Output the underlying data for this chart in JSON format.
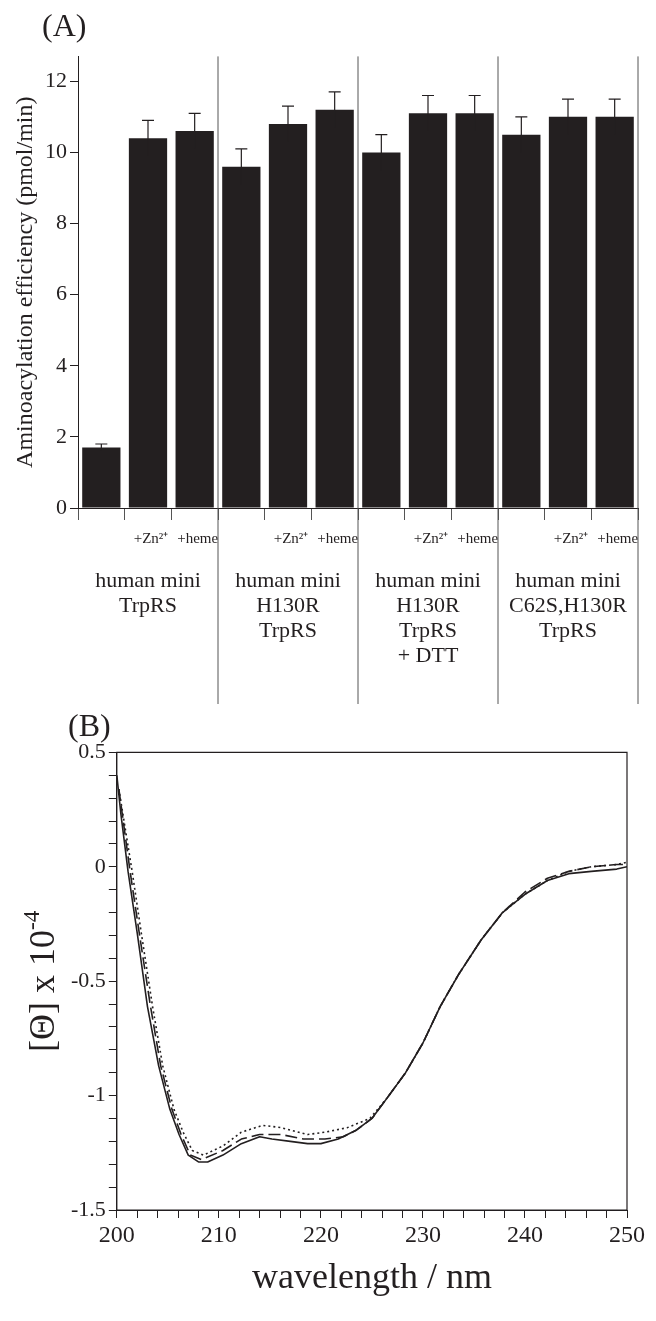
{
  "chart_data": [
    {
      "type": "bar",
      "title": "(A)",
      "ylabel": "Aminoacylation efficiency (pmol/min)",
      "categories": [
        null,
        "+Zn²⁺",
        "+heme",
        null,
        "+Zn²⁺",
        "+heme",
        null,
        "+Zn²⁺",
        "+heme",
        null,
        "+Zn²⁺",
        "+heme"
      ],
      "values": [
        1.7,
        10.4,
        10.6,
        9.6,
        10.8,
        11.2,
        10.0,
        11.1,
        11.1,
        10.5,
        11.0,
        11.0
      ],
      "errors": [
        0.1,
        0.5,
        0.5,
        0.5,
        0.5,
        0.5,
        0.5,
        0.5,
        0.5,
        0.5,
        0.5,
        0.5
      ],
      "color": "#231f20",
      "ylim": [
        0,
        12.7
      ],
      "yticks": [
        0,
        2,
        4,
        6,
        8,
        10,
        12
      ],
      "annotations": [
        "human mini\nTrpRS",
        "human mini\nH130R\nTrpRS",
        "human mini\nH130R\nTrpRS\n+ DTT",
        "human mini\nC62S,H130R\nTrpRS"
      ]
    },
    {
      "type": "line",
      "title": "(B)",
      "xlabel": "wavelength / nm",
      "ylabel": "[Θ] x 10$^{-4}$",
      "marker": "none",
      "xlim": [
        200,
        250
      ],
      "xticks": [
        200,
        {
          "value": 202,
          "label": null
        },
        {
          "value": 204,
          "label": null
        },
        {
          "value": 206,
          "label": null
        },
        {
          "value": 208,
          "label": null
        },
        210,
        {
          "value": 212,
          "label": null
        },
        {
          "value": 214,
          "label": null
        },
        {
          "value": 216,
          "label": null
        },
        {
          "value": 218,
          "label": null
        },
        220,
        {
          "value": 222,
          "label": null
        },
        {
          "value": 224,
          "label": null
        },
        {
          "value": 226,
          "label": null
        },
        {
          "value": 228,
          "label": null
        },
        230,
        {
          "value": 232,
          "label": null
        },
        {
          "value": 234,
          "label": null
        },
        {
          "value": 236,
          "label": null
        },
        {
          "value": 238,
          "label": null
        },
        240,
        {
          "value": 242,
          "label": null
        },
        {
          "value": 244,
          "label": null
        },
        {
          "value": 246,
          "label": null
        },
        {
          "value": 248,
          "label": null
        },
        250
      ],
      "ylim": [
        -1.5,
        0.5
      ],
      "yticks": [
        -1.5,
        {
          "value": -1.4,
          "label": null
        },
        {
          "value": -1.3,
          "label": null
        },
        {
          "value": -1.2,
          "label": null
        },
        {
          "value": -1.1,
          "label": null
        },
        -1,
        {
          "value": -0.9,
          "label": null
        },
        {
          "value": -0.8,
          "label": null
        },
        {
          "value": -0.7,
          "label": null
        },
        {
          "value": -0.6,
          "label": null
        },
        -0.5,
        {
          "value": -0.4,
          "label": null
        },
        {
          "value": -0.3,
          "label": null
        },
        {
          "value": -0.2,
          "label": null
        },
        {
          "value": -0.1,
          "label": null
        },
        0,
        {
          "value": 0.1,
          "label": null
        },
        {
          "value": 0.2,
          "label": null
        },
        {
          "value": 0.3,
          "label": null
        },
        {
          "value": 0.4,
          "label": null
        },
        0.5
      ],
      "series": [
        {
          "color": "#231f20",
          "line_style": "solid",
          "x": [
            200,
            200.4,
            201.1,
            202,
            203,
            204.1,
            205.2,
            206.1,
            207,
            208,
            208.9,
            210.4,
            212.2,
            214,
            215.2,
            217,
            218.7,
            220,
            221.7,
            223.5,
            225,
            226.5,
            228.3,
            230,
            231.7,
            233.5,
            235.7,
            237.8,
            240,
            242.2,
            244.3,
            246.5,
            249,
            250
          ],
          "values": [
            0.4,
            0.23,
            -0.02,
            -0.29,
            -0.61,
            -0.87,
            -1.06,
            -1.17,
            -1.26,
            -1.29,
            -1.29,
            -1.26,
            -1.21,
            -1.18,
            -1.19,
            -1.2,
            -1.21,
            -1.21,
            -1.19,
            -1.15,
            -1.1,
            -1.01,
            -0.9,
            -0.77,
            -0.61,
            -0.47,
            -0.32,
            -0.2,
            -0.12,
            -0.06,
            -0.03,
            -0.02,
            -0.01,
            0
          ]
        },
        {
          "color": "#231f20",
          "line_style": "dashed",
          "x": [
            200.2,
            201.3,
            202.2,
            203.3,
            204.3,
            205.4,
            206.3,
            207.2,
            208.3,
            210.4,
            212.2,
            214,
            216.1,
            218.3,
            220.4,
            222.2,
            223.5,
            225,
            226.5,
            228.3,
            230,
            231.7,
            233.5,
            235.7,
            237.8,
            240,
            242.2,
            244.3,
            246.5,
            249,
            250
          ],
          "values": [
            0.34,
            -0.02,
            -0.29,
            -0.61,
            -0.87,
            -1.06,
            -1.17,
            -1.26,
            -1.28,
            -1.24,
            -1.19,
            -1.17,
            -1.17,
            -1.19,
            -1.19,
            -1.18,
            -1.15,
            -1.1,
            -1.01,
            -0.9,
            -0.77,
            -0.61,
            -0.47,
            -0.32,
            -0.2,
            -0.11,
            -0.05,
            -0.02,
            0,
            0.01,
            0.01
          ]
        },
        {
          "color": "#231f20",
          "line_style": "dotted",
          "x": [
            200.2,
            201.5,
            202.4,
            203.5,
            204.5,
            205.6,
            206.5,
            207.4,
            208.5,
            210.4,
            212.2,
            214.3,
            216.1,
            218.7,
            220.4,
            222.6,
            224.8,
            226.5,
            228.3,
            230,
            231.7,
            233.5,
            235.7,
            237.8,
            240,
            242.2,
            244.3,
            246.5,
            249,
            250
          ],
          "values": [
            0.34,
            -0.02,
            -0.29,
            -0.61,
            -0.87,
            -1.06,
            -1.16,
            -1.24,
            -1.26,
            -1.22,
            -1.16,
            -1.13,
            -1.14,
            -1.17,
            -1.16,
            -1.14,
            -1.1,
            -1.01,
            -0.9,
            -0.77,
            -0.61,
            -0.47,
            -0.32,
            -0.2,
            -0.12,
            -0.06,
            -0.02,
            0,
            0.01,
            0.02
          ]
        }
      ]
    }
  ]
}
